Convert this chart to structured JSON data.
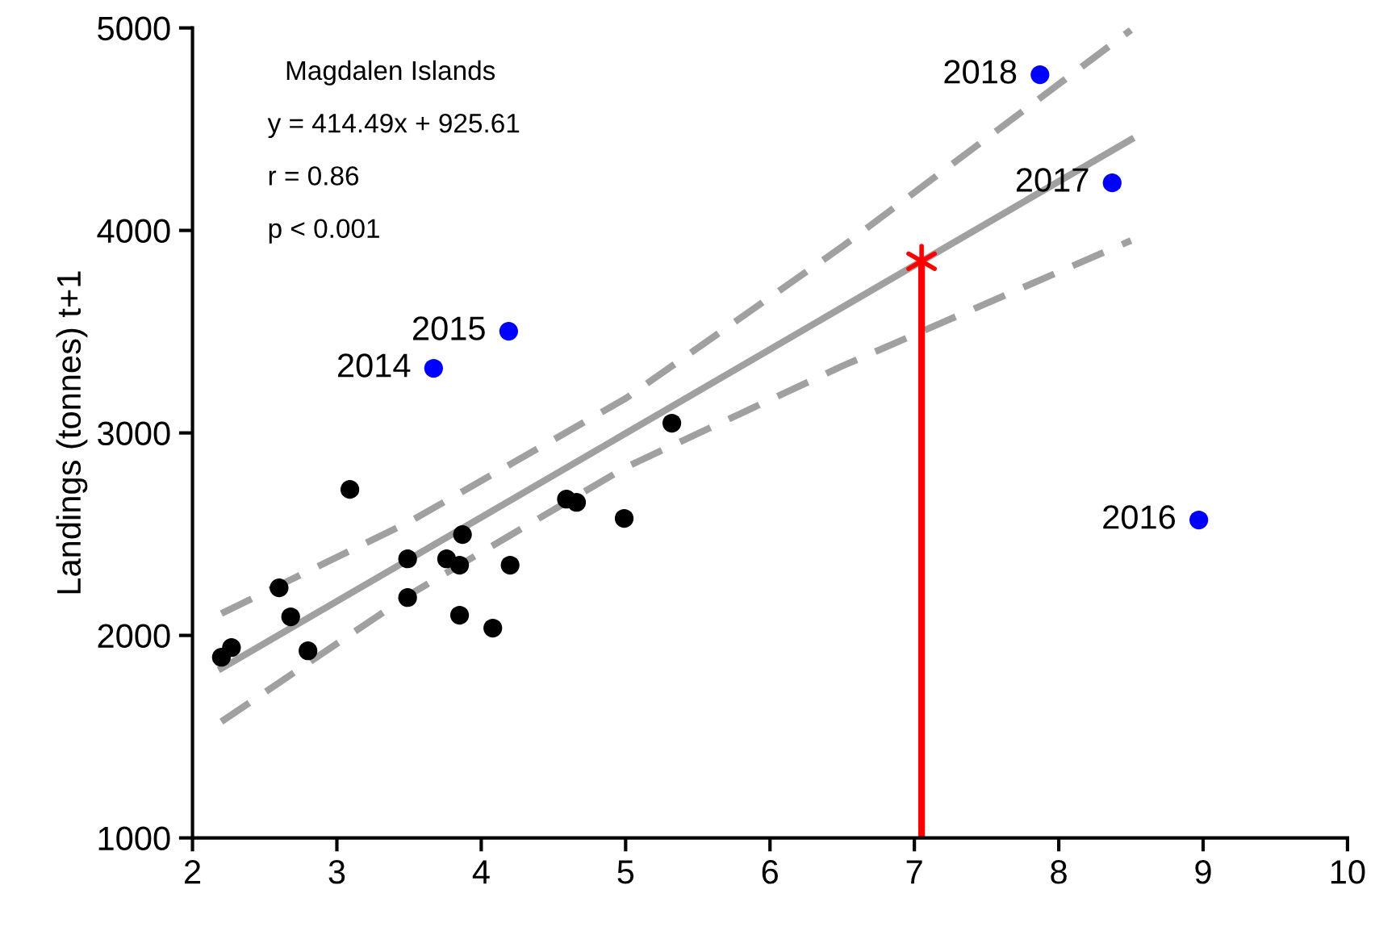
{
  "chart_data": {
    "type": "scatter",
    "ylabel": "Landings (tonnes) t+1",
    "xlim": [
      2,
      10
    ],
    "ylim": [
      1000,
      5000
    ],
    "xticks": [
      2,
      3,
      4,
      5,
      6,
      7,
      8,
      9,
      10
    ],
    "yticks": [
      1000,
      2000,
      3000,
      4000,
      5000
    ],
    "grid": false,
    "series": [
      {
        "type": "line",
        "color": "#a0a0a0",
        "line_style": "dashed",
        "marker": "none",
        "x": [
          2.2,
          3.5,
          5,
          6.5,
          8.5
        ],
        "values": [
          2108,
          2560,
          3170,
          3920,
          4990
        ]
      },
      {
        "type": "line",
        "color": "#a0a0a0",
        "line_style": "dashed",
        "marker": "none",
        "x": [
          2.2,
          3.5,
          5,
          6.5,
          8.5
        ],
        "values": [
          1574,
          2200,
          2830,
          3330,
          3950
        ]
      },
      {
        "type": "line",
        "color": "#a0a0a0",
        "line_style": "solid",
        "marker": "none",
        "x": [
          2.2,
          8.5
        ],
        "values": [
          1837,
          4449
        ]
      },
      {
        "type": "line",
        "color": "#ff0000",
        "line_style": "solid",
        "marker": "none",
        "x": [
          7.05,
          7.05
        ],
        "values": [
          1000,
          3848
        ]
      },
      {
        "color": "#000000",
        "marker": "circle",
        "x": [
          2.2,
          2.27,
          2.6,
          2.68,
          2.8,
          3.09,
          3.49,
          3.49,
          3.76,
          3.85,
          3.87,
          3.85,
          4.08,
          4.2,
          4.59,
          4.66,
          4.99,
          5.32
        ],
        "values": [
          1892,
          1940,
          2235,
          2092,
          1924,
          2721,
          2378,
          2187,
          2378,
          2347,
          2498,
          2100,
          2036,
          2347,
          2673,
          2657,
          2578,
          3048
        ]
      },
      {
        "color": "#0000ff",
        "marker": "circle",
        "x": [
          3.67,
          4.19,
          8.97,
          8.37,
          7.87
        ],
        "values": [
          3319,
          3502,
          2570,
          4235,
          4769
        ]
      },
      {
        "color": "#ff0000",
        "marker": "cross",
        "x": [
          7.05
        ],
        "values": [
          3848
        ]
      }
    ],
    "annotations": [
      "Magdalen Islands",
      "y = 414.49x + 925.61",
      "r = 0.86",
      "p < 0.001",
      {
        "text": "2014",
        "x": 3.67,
        "y": 3319
      },
      {
        "text": "2015",
        "x": 4.19,
        "y": 3502
      },
      {
        "text": "2016",
        "x": 8.97,
        "y": 2570
      },
      {
        "text": "2017",
        "x": 8.37,
        "y": 4235
      },
      {
        "text": "2018",
        "x": 7.87,
        "y": 4769
      }
    ]
  }
}
